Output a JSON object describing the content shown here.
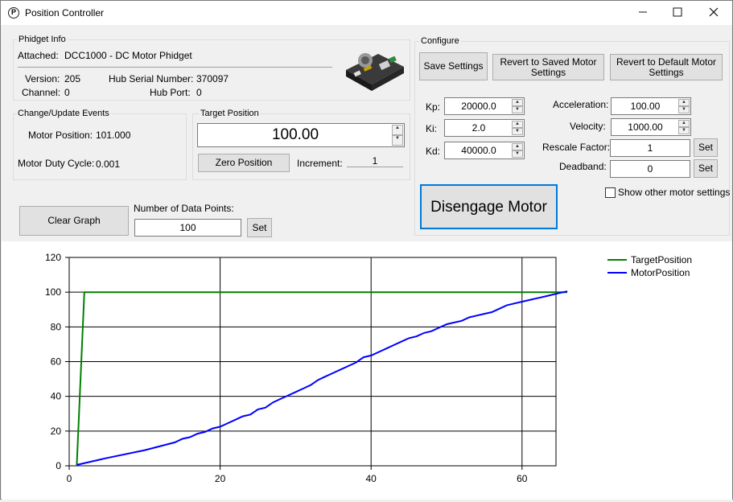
{
  "window": {
    "title": "Position Controller",
    "minimize_icon": "minimize-icon",
    "maximize_icon": "maximize-icon",
    "close_icon": "close-icon"
  },
  "phidget_info": {
    "group_label": "Phidget Info",
    "attached_label": "Attached:",
    "attached_value": "DCC1000 - DC Motor Phidget",
    "version_label": "Version:",
    "version_value": "205",
    "hub_serial_label": "Hub Serial Number:",
    "hub_serial_value": "370097",
    "channel_label": "Channel:",
    "channel_value": "0",
    "hub_port_label": "Hub Port:",
    "hub_port_value": "0"
  },
  "events": {
    "group_label": "Change/Update Events",
    "motor_position_label": "Motor Position:",
    "motor_position_value": "101.000",
    "duty_cycle_label": "Motor Duty Cycle:",
    "duty_cycle_value": "0.001"
  },
  "target": {
    "group_label": "Target Position",
    "value": "100.00",
    "zero_button": "Zero Position",
    "increment_label": "Increment:",
    "increment_value": "1"
  },
  "configure": {
    "group_label": "Configure",
    "save_button": "Save Settings",
    "revert_saved_button": "Revert to Saved Motor Settings",
    "revert_default_button": "Revert to Default Motor Settings",
    "kp_label": "Kp:",
    "kp_value": "20000.0",
    "ki_label": "Ki:",
    "ki_value": "2.0",
    "kd_label": "Kd:",
    "kd_value": "40000.0",
    "acceleration_label": "Acceleration:",
    "acceleration_value": "100.00",
    "velocity_label": "Velocity:",
    "velocity_value": "1000.00",
    "rescale_label": "Rescale Factor:",
    "rescale_value": "1",
    "deadband_label": "Deadband:",
    "deadband_value": "0",
    "set_label": "Set",
    "disengage_button": "Disengage Motor",
    "show_other_label": "Show other motor settings",
    "show_other_checked": false
  },
  "graph_controls": {
    "clear_button": "Clear Graph",
    "data_points_label": "Number of Data Points:",
    "data_points_value": "100",
    "set_label": "Set"
  },
  "chart_data": {
    "type": "line",
    "xlim": [
      0,
      66
    ],
    "ylim": [
      0,
      120
    ],
    "xticks": [
      0,
      20,
      40,
      60
    ],
    "yticks": [
      0,
      20,
      40,
      60,
      80,
      100,
      120
    ],
    "grid": true,
    "legend_position": "top-right",
    "series": [
      {
        "name": "TargetPosition",
        "color": "#008000",
        "x": [
          1,
          2,
          66
        ],
        "y": [
          0,
          100,
          100
        ]
      },
      {
        "name": "MotorPosition",
        "color": "#0000ff",
        "x": [
          1,
          5,
          10,
          14,
          15,
          16,
          17,
          18,
          19,
          20,
          21,
          22,
          23,
          24,
          25,
          26,
          27,
          28,
          29,
          30,
          31,
          32,
          33,
          34,
          35,
          36,
          37,
          38,
          39,
          40,
          41,
          42,
          43,
          44,
          45,
          46,
          47,
          48,
          49,
          50,
          51,
          52,
          53,
          54,
          55,
          56,
          57,
          58,
          59,
          60,
          61,
          62,
          63,
          64,
          65,
          66
        ],
        "y": [
          0.5,
          4.5,
          9,
          13.5,
          15.5,
          16.5,
          18.5,
          19.5,
          21.5,
          22.5,
          24.5,
          26.5,
          28.5,
          29.5,
          32.5,
          33.5,
          36.5,
          38.5,
          40.5,
          42.5,
          44.5,
          46.5,
          49.5,
          51.5,
          53.5,
          55.5,
          57.5,
          59.5,
          62.5,
          63.5,
          65.5,
          67.5,
          69.5,
          71.5,
          73.5,
          74.5,
          76.5,
          77.5,
          79.5,
          81.5,
          82.5,
          83.5,
          85.5,
          86.5,
          87.5,
          88.5,
          90.5,
          92.5,
          93.5,
          94.5,
          95.5,
          96.5,
          97.5,
          98.5,
          99.5,
          100.5
        ]
      }
    ]
  }
}
